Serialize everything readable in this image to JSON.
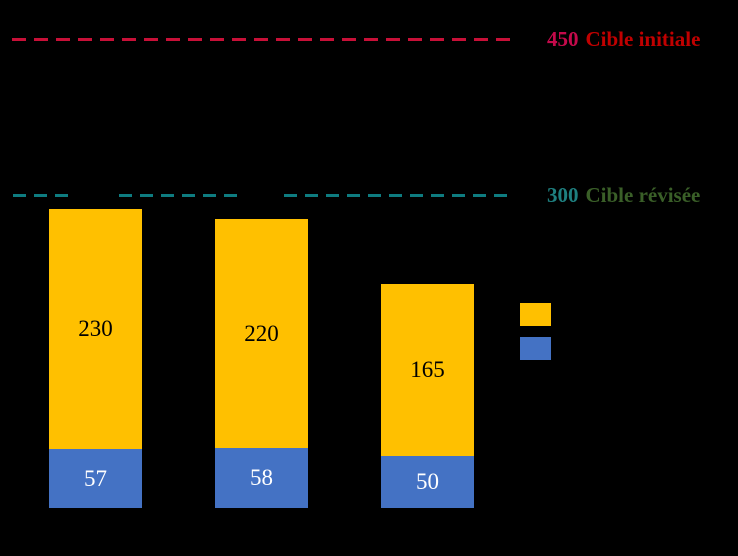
{
  "colors": {
    "background": "#000000",
    "target_initial_line": "#C81038",
    "target_initial_value_text": "#C50A4B",
    "target_initial_label_text": "#C00000",
    "target_revised_line": "#0E7C80",
    "target_revised_value_text": "#1E7F7F",
    "target_revised_label_text": "#3A5F28",
    "label_on_yellow": "#000000",
    "label_on_blue": "#FFFFFF"
  },
  "reference_labels": {
    "initial": {
      "value": "450",
      "label": "Cible initiale"
    },
    "revised": {
      "value": "300",
      "label": "Cible révisée"
    }
  },
  "chart_data": {
    "type": "bar",
    "stacked": true,
    "orientation": "vertical",
    "categories": [
      "",
      "",
      ""
    ],
    "series": [
      {
        "name": "blue-bottom-segment",
        "color": "#4472C4",
        "values": [
          57,
          58,
          50
        ]
      },
      {
        "name": "yellow-top-segment",
        "color": "#FFC000",
        "values": [
          230,
          220,
          165
        ]
      }
    ],
    "totals": [
      287,
      278,
      215
    ],
    "reference_lines": [
      {
        "value": 450,
        "label": "Cible initiale",
        "color": "#C81038",
        "style": "dashed"
      },
      {
        "value": 300,
        "label": "Cible révisée",
        "color": "#0E7C80",
        "style": "dashed"
      }
    ],
    "ylim": [
      0,
      487
    ],
    "grid": false,
    "axis_tick_labels_visible": false,
    "legend_position": "right",
    "legend_swatch_colors": [
      "#FFC000",
      "#4472C4"
    ]
  }
}
